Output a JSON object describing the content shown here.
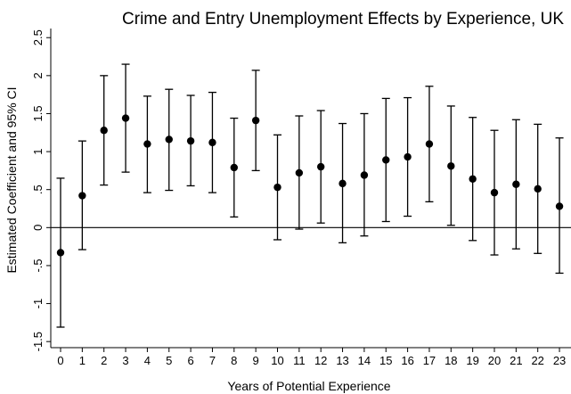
{
  "chart_data": {
    "type": "scatter",
    "title": "Crime and Entry Unemployment Effects by Experience, UK",
    "xlabel": "Years of Potential Experience",
    "ylabel": "Estimated Coefficient and 95% CI",
    "x_ticks": [
      "0",
      "1",
      "2",
      "3",
      "4",
      "5",
      "6",
      "7",
      "8",
      "9",
      "10",
      "11",
      "12",
      "13",
      "14",
      "15",
      "16",
      "17",
      "18",
      "19",
      "20",
      "21",
      "22",
      "23"
    ],
    "y_ticks": [
      "-1.5",
      "-1",
      "-.5",
      "0",
      ".5",
      "1",
      "1.5",
      "2",
      "2.5"
    ],
    "y_tick_values": [
      -1.5,
      -1,
      -0.5,
      0,
      0.5,
      1,
      1.5,
      2,
      2.5
    ],
    "xlim": [
      -0.5,
      23.2
    ],
    "ylim": [
      -1.58,
      2.62
    ],
    "grid": false,
    "zero_line": true,
    "points": [
      {
        "x": 0,
        "y": -0.33,
        "lower": -1.31,
        "upper": 0.65
      },
      {
        "x": 1,
        "y": 0.42,
        "lower": -0.29,
        "upper": 1.14
      },
      {
        "x": 2,
        "y": 1.28,
        "lower": 0.56,
        "upper": 2.0
      },
      {
        "x": 3,
        "y": 1.44,
        "lower": 0.73,
        "upper": 2.15
      },
      {
        "x": 4,
        "y": 1.1,
        "lower": 0.46,
        "upper": 1.73
      },
      {
        "x": 5,
        "y": 1.16,
        "lower": 0.49,
        "upper": 1.82
      },
      {
        "x": 6,
        "y": 1.14,
        "lower": 0.55,
        "upper": 1.74
      },
      {
        "x": 7,
        "y": 1.12,
        "lower": 0.46,
        "upper": 1.78
      },
      {
        "x": 8,
        "y": 0.79,
        "lower": 0.14,
        "upper": 1.44
      },
      {
        "x": 9,
        "y": 1.41,
        "lower": 0.75,
        "upper": 2.07
      },
      {
        "x": 10,
        "y": 0.53,
        "lower": -0.16,
        "upper": 1.22
      },
      {
        "x": 11,
        "y": 0.72,
        "lower": -0.02,
        "upper": 1.47
      },
      {
        "x": 12,
        "y": 0.8,
        "lower": 0.06,
        "upper": 1.54
      },
      {
        "x": 13,
        "y": 0.58,
        "lower": -0.2,
        "upper": 1.37
      },
      {
        "x": 14,
        "y": 0.69,
        "lower": -0.11,
        "upper": 1.5
      },
      {
        "x": 15,
        "y": 0.89,
        "lower": 0.08,
        "upper": 1.7
      },
      {
        "x": 16,
        "y": 0.93,
        "lower": 0.15,
        "upper": 1.71
      },
      {
        "x": 17,
        "y": 1.1,
        "lower": 0.34,
        "upper": 1.86
      },
      {
        "x": 18,
        "y": 0.81,
        "lower": 0.03,
        "upper": 1.6
      },
      {
        "x": 19,
        "y": 0.64,
        "lower": -0.17,
        "upper": 1.45
      },
      {
        "x": 20,
        "y": 0.46,
        "lower": -0.36,
        "upper": 1.28
      },
      {
        "x": 21,
        "y": 0.57,
        "lower": -0.28,
        "upper": 1.42
      },
      {
        "x": 22,
        "y": 0.51,
        "lower": -0.34,
        "upper": 1.36
      },
      {
        "x": 23,
        "y": 0.28,
        "lower": -0.6,
        "upper": 1.18
      }
    ],
    "colors": {
      "marker": "#000000",
      "line": "#000000",
      "background": "#ffffff"
    }
  }
}
